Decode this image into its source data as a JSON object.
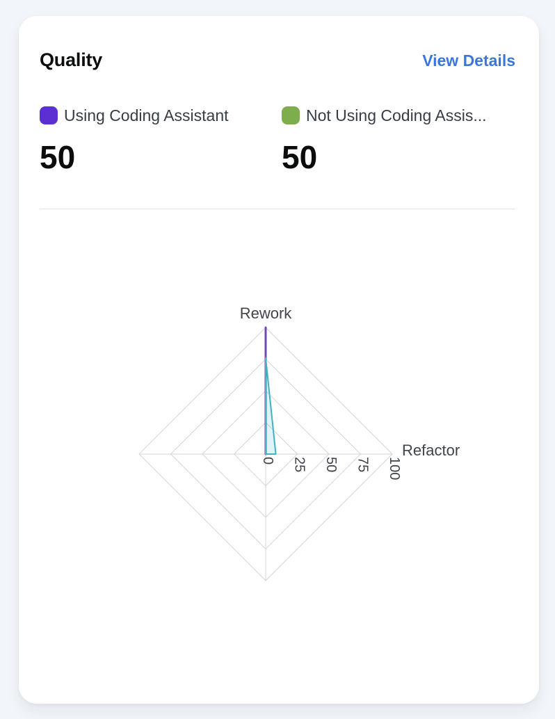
{
  "card": {
    "title": "Quality",
    "view_details_label": "View Details"
  },
  "colors": {
    "link_blue": "#3b77d8",
    "page_background": "#f2f5fa",
    "card_background": "#ffffff",
    "divider": "#dfe2ea"
  },
  "legend": [
    {
      "label": "Using Coding Assistant",
      "value": "50",
      "swatch_color": "#5b2fd1"
    },
    {
      "label": "Not Using Coding Assis...",
      "value": "50",
      "swatch_color": "#7ead4b"
    }
  ],
  "chart_data": {
    "type": "radar",
    "title": "Quality",
    "axis_max": 100,
    "ticks": [
      0,
      25,
      50,
      75,
      100
    ],
    "grid_shape": "polygon",
    "indicators": [
      {
        "name": "Rework",
        "max": 100,
        "position": "top"
      },
      {
        "name": "Refactor",
        "max": 100,
        "position": "right"
      },
      {
        "name": "",
        "max": 100,
        "position": "bottom"
      },
      {
        "name": "",
        "max": 100,
        "position": "left"
      }
    ],
    "series": [
      {
        "name": "Using Coding Assistant",
        "values": [
          100,
          0,
          0,
          0
        ],
        "line_color": "#7148ae",
        "fill_color": "none",
        "line_width": 3
      },
      {
        "name": "Not Using Coding Assis...",
        "values": [
          76,
          8,
          0,
          0
        ],
        "line_color": "#41b2c4",
        "fill_color": "rgba(65,178,196,0.16)",
        "line_width": 2
      }
    ],
    "grid_color": "#d6d6da",
    "label_color": "#3f444a",
    "legend_position": "top-outside"
  }
}
